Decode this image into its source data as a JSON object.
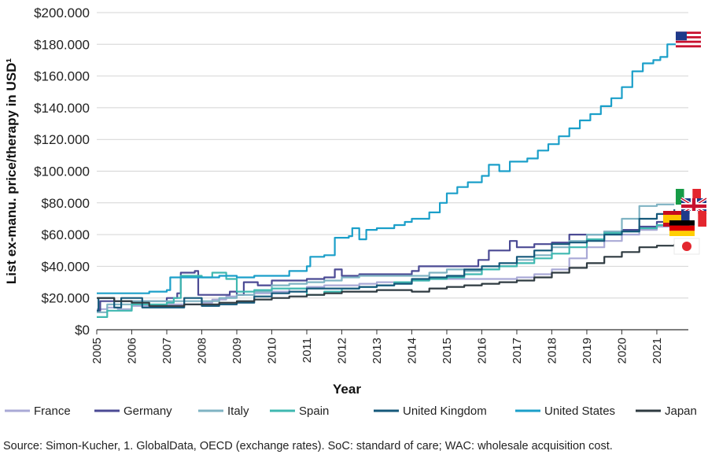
{
  "chart_data": {
    "type": "line",
    "ylabel": "List ex-manu. price/therapy in USD¹",
    "xlabel": "Year",
    "source": "Source: Simon-Kucher, 1. GlobalData, OECD (exchange rates). SoC: standard of care; WAC: wholesale acquisition cost.",
    "xlim": [
      2005,
      2021.9
    ],
    "ylim": [
      0,
      200000
    ],
    "x_ticks": [
      "2005",
      "2006",
      "2007",
      "2008",
      "2009",
      "2010",
      "2011",
      "2012",
      "2013",
      "2014",
      "2015",
      "2016",
      "2017",
      "2018",
      "2019",
      "2020",
      "2021"
    ],
    "y_ticks": [
      "$0",
      "$20.000",
      "$40.000",
      "$60.000",
      "$80.000",
      "$100.000",
      "$120.000",
      "$140.000",
      "$160.000",
      "$180.000",
      "$200.000"
    ],
    "grid": "horizontal",
    "legend_position": "bottom",
    "series": [
      {
        "name": "France",
        "color": "#a9a9d6",
        "flag": "france-flag",
        "points": [
          [
            2005,
            13000
          ],
          [
            2005.3,
            14000
          ],
          [
            2005.6,
            13000
          ],
          [
            2006,
            15000
          ],
          [
            2006.5,
            15000
          ],
          [
            2007,
            16000
          ],
          [
            2007.5,
            16000
          ],
          [
            2008,
            17000
          ],
          [
            2008.3,
            19000
          ],
          [
            2008.7,
            21000
          ],
          [
            2009,
            22000
          ],
          [
            2009.5,
            23000
          ],
          [
            2010,
            24000
          ],
          [
            2010.5,
            26000
          ],
          [
            2011,
            27000
          ],
          [
            2011.5,
            28000
          ],
          [
            2012,
            28000
          ],
          [
            2012.5,
            29000
          ],
          [
            2013,
            30000
          ],
          [
            2013.5,
            30000
          ],
          [
            2014,
            31000
          ],
          [
            2014.5,
            32000
          ],
          [
            2015,
            32000
          ],
          [
            2015.5,
            32000
          ],
          [
            2016,
            32000
          ],
          [
            2016.5,
            32000
          ],
          [
            2017,
            33000
          ],
          [
            2017.5,
            35000
          ],
          [
            2018,
            38000
          ],
          [
            2018.5,
            45000
          ],
          [
            2019,
            52000
          ],
          [
            2019.5,
            56000
          ],
          [
            2020,
            60000
          ],
          [
            2020.5,
            63000
          ],
          [
            2021,
            65000
          ],
          [
            2021.5,
            66000
          ]
        ]
      },
      {
        "name": "Germany",
        "color": "#4b4a94",
        "flag": "germany-flag",
        "points": [
          [
            2005,
            12000
          ],
          [
            2005.1,
            18000
          ],
          [
            2005.5,
            18000
          ],
          [
            2006,
            18000
          ],
          [
            2006.5,
            18000
          ],
          [
            2007,
            20000
          ],
          [
            2007.3,
            23000
          ],
          [
            2007.4,
            36000
          ],
          [
            2007.8,
            37000
          ],
          [
            2007.9,
            22000
          ],
          [
            2008.3,
            22000
          ],
          [
            2008.8,
            24000
          ],
          [
            2009,
            22000
          ],
          [
            2009.2,
            30000
          ],
          [
            2009.6,
            28000
          ],
          [
            2010,
            31000
          ],
          [
            2010.5,
            31000
          ],
          [
            2011,
            32000
          ],
          [
            2011.5,
            33000
          ],
          [
            2011.8,
            38000
          ],
          [
            2012,
            34000
          ],
          [
            2012.5,
            35000
          ],
          [
            2013,
            35000
          ],
          [
            2013.5,
            35000
          ],
          [
            2014,
            37000
          ],
          [
            2014.2,
            40000
          ],
          [
            2014.7,
            40000
          ],
          [
            2015,
            40000
          ],
          [
            2015.5,
            40000
          ],
          [
            2015.9,
            44000
          ],
          [
            2016.2,
            50000
          ],
          [
            2016.5,
            50000
          ],
          [
            2016.8,
            56000
          ],
          [
            2017,
            52000
          ],
          [
            2017.5,
            54000
          ],
          [
            2018,
            55000
          ],
          [
            2018.5,
            60000
          ],
          [
            2019,
            60000
          ],
          [
            2019.5,
            62000
          ],
          [
            2020,
            63000
          ],
          [
            2020.5,
            65000
          ],
          [
            2021,
            68000
          ],
          [
            2021.5,
            70000
          ]
        ]
      },
      {
        "name": "Italy",
        "color": "#7fb3c3",
        "flag": "italy-flag",
        "points": [
          [
            2005,
            11000
          ],
          [
            2005.3,
            16000
          ],
          [
            2005.7,
            16000
          ],
          [
            2006,
            18000
          ],
          [
            2006.5,
            18000
          ],
          [
            2007,
            18000
          ],
          [
            2007.5,
            18000
          ],
          [
            2008,
            18000
          ],
          [
            2008.5,
            20000
          ],
          [
            2009,
            22000
          ],
          [
            2009.5,
            24000
          ],
          [
            2010,
            28000
          ],
          [
            2010.5,
            29000
          ],
          [
            2011,
            30000
          ],
          [
            2011.5,
            31000
          ],
          [
            2012,
            33000
          ],
          [
            2012.5,
            34000
          ],
          [
            2013,
            34000
          ],
          [
            2013.5,
            34000
          ],
          [
            2014,
            34000
          ],
          [
            2014.5,
            36000
          ],
          [
            2015,
            38000
          ],
          [
            2015.5,
            37000
          ],
          [
            2016,
            38000
          ],
          [
            2016.5,
            40000
          ],
          [
            2017,
            44000
          ],
          [
            2017.5,
            47000
          ],
          [
            2018,
            52000
          ],
          [
            2018.5,
            56000
          ],
          [
            2019,
            60000
          ],
          [
            2019.5,
            62000
          ],
          [
            2020,
            70000
          ],
          [
            2020.5,
            78000
          ],
          [
            2021,
            79000
          ],
          [
            2021.5,
            79000
          ]
        ]
      },
      {
        "name": "Spain",
        "color": "#3fb8b0",
        "flag": "spain-flag",
        "points": [
          [
            2005,
            8000
          ],
          [
            2005.3,
            12000
          ],
          [
            2005.6,
            12000
          ],
          [
            2006,
            16000
          ],
          [
            2006.5,
            16000
          ],
          [
            2007,
            17000
          ],
          [
            2007.2,
            20000
          ],
          [
            2007.4,
            34000
          ],
          [
            2007.8,
            34000
          ],
          [
            2008,
            33000
          ],
          [
            2008.3,
            36000
          ],
          [
            2008.7,
            32000
          ],
          [
            2009,
            24000
          ],
          [
            2009.5,
            25000
          ],
          [
            2010,
            26000
          ],
          [
            2010.5,
            26000
          ],
          [
            2011,
            22000
          ],
          [
            2011.5,
            24000
          ],
          [
            2012,
            26000
          ],
          [
            2012.5,
            27000
          ],
          [
            2013,
            28000
          ],
          [
            2013.5,
            30000
          ],
          [
            2014,
            31000
          ],
          [
            2014.5,
            32000
          ],
          [
            2015,
            33000
          ],
          [
            2015.5,
            35000
          ],
          [
            2016,
            38000
          ],
          [
            2016.5,
            40000
          ],
          [
            2017,
            42000
          ],
          [
            2017.5,
            45000
          ],
          [
            2018,
            48000
          ],
          [
            2018.5,
            52000
          ],
          [
            2019,
            57000
          ],
          [
            2019.5,
            61000
          ],
          [
            2020,
            62000
          ],
          [
            2020.5,
            64000
          ],
          [
            2021,
            66000
          ],
          [
            2021.5,
            67000
          ]
        ]
      },
      {
        "name": "United Kingdom",
        "color": "#15587a",
        "flag": "uk-flag",
        "points": [
          [
            2005,
            12000
          ],
          [
            2005.05,
            20000
          ],
          [
            2005.4,
            20000
          ],
          [
            2005.5,
            14000
          ],
          [
            2005.7,
            20000
          ],
          [
            2006.2,
            20000
          ],
          [
            2006.3,
            14000
          ],
          [
            2006.8,
            14000
          ],
          [
            2007.3,
            14000
          ],
          [
            2007.5,
            20000
          ],
          [
            2007.9,
            20000
          ],
          [
            2008,
            15000
          ],
          [
            2008.5,
            16000
          ],
          [
            2009,
            17000
          ],
          [
            2009.5,
            21000
          ],
          [
            2010,
            23000
          ],
          [
            2010.5,
            24000
          ],
          [
            2011,
            26000
          ],
          [
            2011.5,
            26000
          ],
          [
            2012,
            26000
          ],
          [
            2012.5,
            27000
          ],
          [
            2013,
            28000
          ],
          [
            2013.5,
            29000
          ],
          [
            2014,
            32000
          ],
          [
            2014.5,
            33000
          ],
          [
            2015,
            34000
          ],
          [
            2015.5,
            38000
          ],
          [
            2016,
            40000
          ],
          [
            2016.5,
            42000
          ],
          [
            2017,
            46000
          ],
          [
            2017.5,
            50000
          ],
          [
            2018,
            54000
          ],
          [
            2018.5,
            55000
          ],
          [
            2019,
            56000
          ],
          [
            2019.5,
            60000
          ],
          [
            2020,
            62000
          ],
          [
            2020.5,
            70000
          ],
          [
            2021,
            73000
          ],
          [
            2021.5,
            76000
          ]
        ]
      },
      {
        "name": "United States",
        "color": "#1b9fc9",
        "flag": "us-flag",
        "points": [
          [
            2005,
            23000
          ],
          [
            2005.5,
            23000
          ],
          [
            2006,
            23000
          ],
          [
            2006.5,
            24000
          ],
          [
            2007,
            25000
          ],
          [
            2007.1,
            33000
          ],
          [
            2007.5,
            33000
          ],
          [
            2008,
            33000
          ],
          [
            2008.5,
            34000
          ],
          [
            2009,
            33000
          ],
          [
            2009.5,
            34000
          ],
          [
            2010,
            34000
          ],
          [
            2010.5,
            37000
          ],
          [
            2011,
            40000
          ],
          [
            2011.1,
            46000
          ],
          [
            2011.5,
            47000
          ],
          [
            2011.8,
            58000
          ],
          [
            2012.2,
            59000
          ],
          [
            2012.3,
            64000
          ],
          [
            2012.5,
            57000
          ],
          [
            2012.7,
            63000
          ],
          [
            2013,
            64000
          ],
          [
            2013.5,
            66000
          ],
          [
            2013.8,
            68000
          ],
          [
            2014,
            70000
          ],
          [
            2014.5,
            74000
          ],
          [
            2014.8,
            80000
          ],
          [
            2015,
            86000
          ],
          [
            2015.3,
            90000
          ],
          [
            2015.6,
            93000
          ],
          [
            2016,
            97000
          ],
          [
            2016.2,
            104000
          ],
          [
            2016.5,
            100000
          ],
          [
            2016.8,
            106000
          ],
          [
            2017,
            106000
          ],
          [
            2017.3,
            108000
          ],
          [
            2017.6,
            113000
          ],
          [
            2017.9,
            117000
          ],
          [
            2018.2,
            122000
          ],
          [
            2018.5,
            127000
          ],
          [
            2018.8,
            132000
          ],
          [
            2019.1,
            136000
          ],
          [
            2019.4,
            141000
          ],
          [
            2019.7,
            146000
          ],
          [
            2020,
            153000
          ],
          [
            2020.3,
            163000
          ],
          [
            2020.6,
            168000
          ],
          [
            2020.9,
            170000
          ],
          [
            2021.1,
            172000
          ],
          [
            2021.3,
            180000
          ],
          [
            2021.6,
            182000
          ]
        ]
      },
      {
        "name": "Japan",
        "color": "#2e3a40",
        "flag": "japan-flag",
        "points": [
          [
            2005,
            20000
          ],
          [
            2005.5,
            18000
          ],
          [
            2006,
            17000
          ],
          [
            2006.5,
            15000
          ],
          [
            2007,
            15000
          ],
          [
            2007.5,
            16000
          ],
          [
            2008,
            16000
          ],
          [
            2008.5,
            17000
          ],
          [
            2009,
            18000
          ],
          [
            2009.5,
            19000
          ],
          [
            2010,
            20000
          ],
          [
            2010.5,
            21000
          ],
          [
            2011,
            22000
          ],
          [
            2011.5,
            23000
          ],
          [
            2012,
            24000
          ],
          [
            2012.5,
            24000
          ],
          [
            2013,
            25000
          ],
          [
            2013.5,
            25000
          ],
          [
            2014,
            24000
          ],
          [
            2014.5,
            26000
          ],
          [
            2015,
            27000
          ],
          [
            2015.5,
            28000
          ],
          [
            2016,
            29000
          ],
          [
            2016.5,
            30000
          ],
          [
            2017,
            31000
          ],
          [
            2017.5,
            33000
          ],
          [
            2018,
            36000
          ],
          [
            2018.5,
            39000
          ],
          [
            2019,
            42000
          ],
          [
            2019.5,
            46000
          ],
          [
            2020,
            49000
          ],
          [
            2020.5,
            52000
          ],
          [
            2021,
            53000
          ],
          [
            2021.5,
            54000
          ]
        ]
      }
    ]
  }
}
